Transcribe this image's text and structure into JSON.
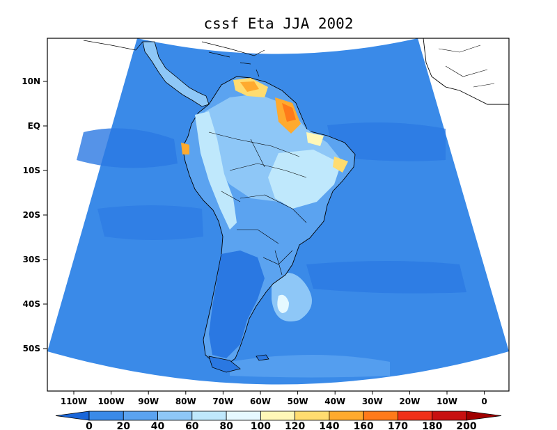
{
  "map": {
    "title": "cssf Eta JJA 2002",
    "lat_labels": [
      "10N",
      "EQ",
      "10S",
      "20S",
      "30S",
      "40S",
      "50S"
    ],
    "lon_labels": [
      "110W",
      "100W",
      "90W",
      "80W",
      "70W",
      "60W",
      "50W",
      "40W",
      "30W",
      "20W",
      "10W",
      "0"
    ],
    "ocean_color": "#3a8ae8",
    "frame_color": "#000000"
  },
  "colorbar": {
    "levels": [
      "0",
      "20",
      "40",
      "60",
      "80",
      "100",
      "120",
      "140",
      "160",
      "170",
      "180",
      "200"
    ],
    "colors": [
      "#1a66d9",
      "#3a8ae8",
      "#5ba3f0",
      "#8ec7f7",
      "#bfe8fc",
      "#e6f9ff",
      "#fff8b8",
      "#ffdc70",
      "#ffaa2e",
      "#ff7a1a",
      "#f03018",
      "#c81010",
      "#a00000"
    ]
  }
}
